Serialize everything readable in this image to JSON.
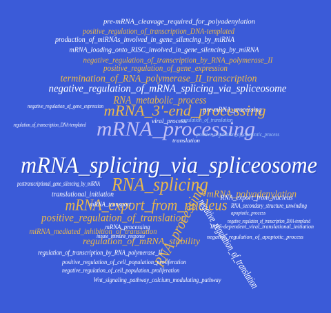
{
  "words": [
    "mRNA_splicing_via_spliceosome",
    "mRNA_processing",
    "RNA_splicing",
    "mRNA_export_from_nucleus",
    "mRNA_3'-end_processing",
    "RNA_metabolic_process",
    "negative_regulation_of_mRNA_splicing_via_spliceosome",
    "termination_of_RNA_polymerase_II_transcription",
    "positive_regulation_of_gene_expression",
    "negative_regulation_of_transcription_by_RNA_polymerase_II",
    "mRNA_loading_onto_RISC_involved_in_gene_silencing_by_miRNA",
    "production_of_miRNAs_involved_in_gene_silencing_by_miRNA",
    "positive_regulation_of_transcription_DNA-templated",
    "pre-mRNA_cleavage_required_for_polyadenylation",
    "positive_regulation_of_translation",
    "mRNA_polyadenylation",
    "RNA_processing",
    "regulation_of_mRNA_stability",
    "miRNA_mediated_inhibition_of_translation",
    "regulation_of_transcription_by_RNA_polymerase_II",
    "negative_regulation_of_translation",
    "RNA_export_from_nucleus",
    "RNA_secondary_structure_unwinding",
    "positive_regulation_of_cell_population_proliferation",
    "Wnt_signaling_pathway_calcium_modulating_pathway",
    "negative_regulation_of_cell_population_proliferation",
    "pre-mRNA_processing",
    "viral_process",
    "translational_initiation",
    "mRNA_transport",
    "mRNA_processing",
    "posttranscriptional_gene_silencing_by_miRNA",
    "negative_regulation_of_gene_expression",
    "regulation_of_transcription_DNA-templated",
    "negative_regulation_of_apoptotic_process",
    "translation",
    "innate_immune_response",
    "apoptotic_process",
    "positive_regulation_of_apoptotic_process",
    "IRES-dependent_viral_translational_initiation",
    "negative_regulation_of_transcription_DNA-templated",
    "regulation_of_translation",
    "mRNA_splicing_via_spliceosome"
  ]
}
